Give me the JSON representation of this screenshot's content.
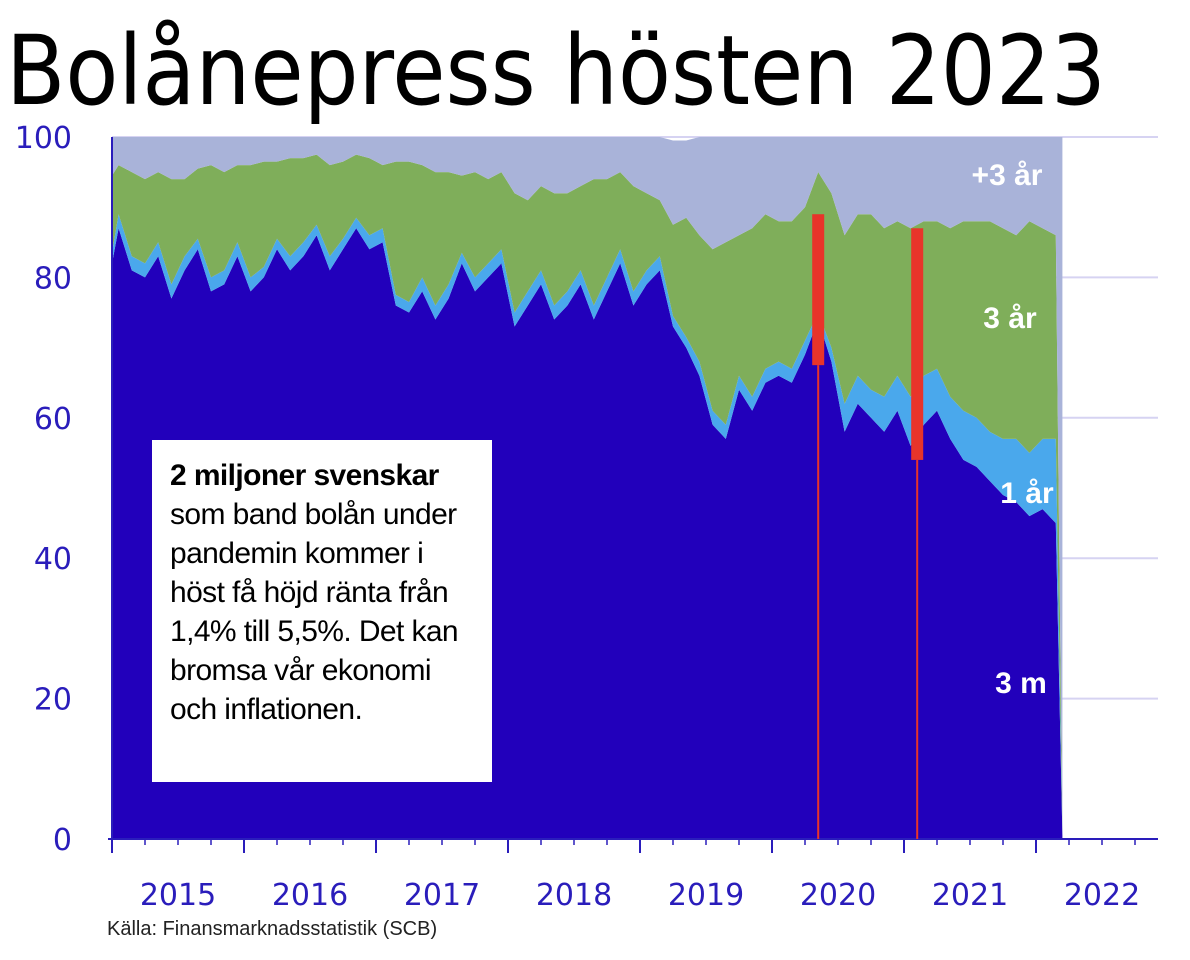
{
  "title": "Bolånepress hösten 2023",
  "source": "Källa: Finansmarknadsstatistik (SCB)",
  "note": {
    "heading": "2 miljoner svenskar",
    "lines": [
      "som band bolån under",
      "pandemin kommer i",
      "höst få höjd ränta från",
      "1,4% till 5,5%. Det kan",
      "bromsa vår ekonomi",
      "och inflationen."
    ]
  },
  "colors": {
    "short_3m": "#2200bb",
    "one_year": "#4aa8ec",
    "three_year": "#7fae5a",
    "over_three_year": "#a9b3d9",
    "marker": "#e8342a",
    "axis": "#2a1dbb",
    "grid": "#d6d3f2"
  },
  "chart_data": {
    "type": "area",
    "stacked": true,
    "ylim": [
      0,
      100
    ],
    "yticks": [
      0,
      20,
      40,
      60,
      80,
      100
    ],
    "xlim": [
      2015,
      2022.9
    ],
    "xticks": [
      "2015",
      "2016",
      "2017",
      "2018",
      "2019",
      "2020",
      "2021",
      "2022"
    ],
    "grid": true,
    "series_labels": [
      "+3 år",
      "3 år",
      "1 år",
      "3 m"
    ],
    "x": [
      2015.0,
      2015.05,
      2015.15,
      2015.25,
      2015.35,
      2015.45,
      2015.55,
      2015.65,
      2015.75,
      2015.85,
      2015.95,
      2016.05,
      2016.15,
      2016.25,
      2016.35,
      2016.45,
      2016.55,
      2016.65,
      2016.75,
      2016.85,
      2016.95,
      2017.05,
      2017.15,
      2017.25,
      2017.35,
      2017.45,
      2017.55,
      2017.65,
      2017.75,
      2017.85,
      2017.95,
      2018.05,
      2018.15,
      2018.25,
      2018.35,
      2018.45,
      2018.55,
      2018.65,
      2018.75,
      2018.85,
      2018.95,
      2019.05,
      2019.15,
      2019.25,
      2019.35,
      2019.45,
      2019.55,
      2019.65,
      2019.75,
      2019.85,
      2019.95,
      2020.05,
      2020.15,
      2020.25,
      2020.35,
      2020.45,
      2020.55,
      2020.65,
      2020.75,
      2020.85,
      2020.95,
      2021.05,
      2021.15,
      2021.25,
      2021.35,
      2021.45,
      2021.55,
      2021.65,
      2021.75,
      2021.85,
      2021.95,
      2022.05,
      2022.15,
      2022.2
    ],
    "series": [
      {
        "name": "3 m",
        "values": [
          82,
          87,
          81,
          80,
          83,
          77,
          81,
          84,
          78,
          79,
          83,
          78,
          80,
          84,
          81,
          83,
          86,
          81,
          84,
          87,
          84,
          85,
          76,
          75,
          78,
          74,
          77,
          82,
          78,
          80,
          82,
          73,
          76,
          79,
          74,
          76,
          79,
          74,
          78,
          82,
          76,
          79,
          81,
          73,
          70,
          66,
          59,
          57,
          64,
          61,
          65,
          66,
          65,
          69,
          74,
          68,
          58,
          62,
          60,
          58,
          61,
          56,
          59,
          61,
          57,
          54,
          53,
          51,
          49,
          48,
          46,
          47,
          45,
          0.5
        ]
      },
      {
        "name": "1 år",
        "values": [
          1.5,
          2,
          2,
          2,
          2,
          2,
          2,
          1.5,
          2,
          2,
          2,
          2,
          1.5,
          1.5,
          2,
          2,
          1.5,
          2,
          1.5,
          1.5,
          2,
          2,
          1.5,
          1.5,
          2,
          2,
          2,
          1.5,
          2,
          2,
          2,
          2,
          2,
          2,
          2,
          2,
          2,
          2,
          2,
          2,
          2,
          2,
          2,
          1.5,
          1.5,
          2,
          2,
          2,
          2,
          2,
          2,
          2,
          2,
          2,
          1,
          2,
          4,
          4,
          4,
          5,
          5,
          7,
          7,
          6,
          6,
          7,
          7,
          7,
          8,
          9,
          9,
          10,
          12,
          0.3
        ]
      },
      {
        "name": "3 år",
        "values": [
          11,
          7,
          12,
          12,
          10,
          15,
          11,
          10,
          16,
          14,
          11,
          16,
          15,
          11,
          14,
          12,
          10,
          13,
          11,
          9,
          11,
          9,
          19,
          20,
          16,
          19,
          16,
          11,
          15,
          12,
          11,
          17,
          13,
          12,
          16,
          14,
          12,
          18,
          14,
          11,
          15,
          11,
          8,
          13,
          17,
          18,
          23,
          26,
          20,
          24,
          22,
          20,
          21,
          19,
          20,
          22,
          24,
          23,
          25,
          24,
          22,
          24,
          22,
          21,
          24,
          27,
          28,
          30,
          30,
          29,
          33,
          30,
          29,
          0.2
        ]
      },
      {
        "name": "+3 år",
        "values": [
          5.5,
          4,
          5,
          6,
          5,
          6,
          6,
          4.5,
          4,
          5,
          4,
          4,
          3.5,
          3.5,
          3,
          3,
          2.5,
          4,
          3.5,
          2.5,
          3,
          4,
          3.5,
          3.5,
          4,
          5,
          5,
          5.5,
          5,
          6,
          5,
          8,
          9,
          7,
          8,
          8,
          7,
          6,
          6,
          5,
          7,
          8,
          9,
          12,
          11,
          14,
          16,
          15,
          14,
          13,
          11,
          12,
          12,
          10,
          15,
          8,
          14,
          11,
          11,
          13,
          12,
          13,
          12,
          12,
          13,
          12,
          12,
          12,
          13,
          14,
          12,
          13,
          14,
          99
        ]
      }
    ],
    "markers": [
      {
        "x": 2020.35,
        "low": 67.5,
        "high": 89
      },
      {
        "x": 2021.1,
        "low": 54,
        "high": 87
      }
    ],
    "marker_lines": [
      {
        "x": 2020.35,
        "from": 0,
        "to": 67.5
      },
      {
        "x": 2021.1,
        "from": 0,
        "to": 54
      }
    ]
  }
}
